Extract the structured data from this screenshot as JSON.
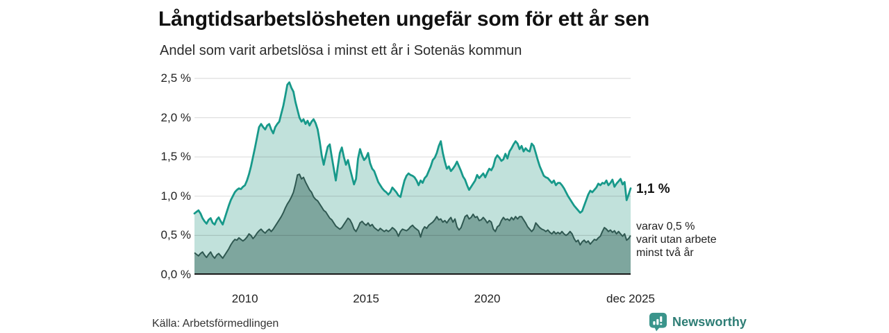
{
  "header": {
    "title": "Långtidsarbetslösheten ungefär som för ett år sen",
    "subtitle": "Andel som varit arbetslösa i minst ett år i Sotenäs kommun"
  },
  "axes": {
    "y_ticks": [
      {
        "label": "2,5 %",
        "value": 2.5
      },
      {
        "label": "2,0 %",
        "value": 2.0
      },
      {
        "label": "1,5 %",
        "value": 1.5
      },
      {
        "label": "1,0 %",
        "value": 1.0
      },
      {
        "label": "0,5 %",
        "value": 0.5
      },
      {
        "label": "0,0 %",
        "value": 0.0
      }
    ],
    "x_ticks": [
      {
        "label": "2010",
        "year": 2010.0
      },
      {
        "label": "2015",
        "year": 2015.0
      },
      {
        "label": "2020",
        "year": 2020.0
      },
      {
        "label": "dec 2025",
        "year": 2025.917
      }
    ]
  },
  "annotations": {
    "end_value": "1,1 %",
    "end_sub_lines": [
      "varav 0,5 %",
      "varit utan arbete",
      "minst två år"
    ]
  },
  "footer": {
    "source": "Källa: Arbetsförmedlingen",
    "brand": "Newsworthy"
  },
  "colors": {
    "line_primary": "#17998a",
    "fill_primary": "#c1e1db",
    "line_secondary": "#2f5851",
    "fill_secondary": "#7ea69e",
    "grid": "rgba(0,0,0,0.13)",
    "axis_baseline": "#1a1a1a",
    "brand": "#2e7d75",
    "brand_icon": "#3a948b"
  },
  "chart_data": {
    "type": "area",
    "title": "Långtidsarbetslösheten ungefär som för ett år sen",
    "subtitle": "Andel som varit arbetslösa i minst ett år i Sotenäs kommun",
    "unit": "%",
    "x_interval": "monthly",
    "x_start": "2007-12",
    "x_end": "2025-12",
    "x_domain": [
      2007.917,
      2025.917
    ],
    "ylim": [
      0,
      2.5
    ],
    "yticks": [
      0,
      0.5,
      1.0,
      1.5,
      2.0,
      2.5
    ],
    "xtick_labels": [
      "2010",
      "2015",
      "2020",
      "dec 2025"
    ],
    "grid": true,
    "legend": "end-of-line annotations",
    "series": [
      {
        "name": "Andel arbetslösa minst ett år",
        "end_label": "1,1 %",
        "end_value": 1.1,
        "values": [
          0.78,
          0.8,
          0.82,
          0.78,
          0.72,
          0.68,
          0.65,
          0.7,
          0.72,
          0.66,
          0.64,
          0.7,
          0.73,
          0.68,
          0.64,
          0.72,
          0.8,
          0.88,
          0.95,
          1.0,
          1.05,
          1.08,
          1.1,
          1.09,
          1.12,
          1.14,
          1.2,
          1.28,
          1.38,
          1.5,
          1.62,
          1.75,
          1.88,
          1.92,
          1.88,
          1.85,
          1.9,
          1.92,
          1.85,
          1.8,
          1.88,
          1.92,
          1.95,
          2.05,
          2.15,
          2.28,
          2.42,
          2.45,
          2.38,
          2.33,
          2.2,
          2.1,
          2.0,
          1.95,
          1.98,
          1.92,
          1.96,
          1.9,
          1.95,
          1.98,
          1.93,
          1.85,
          1.7,
          1.52,
          1.4,
          1.52,
          1.63,
          1.66,
          1.5,
          1.35,
          1.2,
          1.38,
          1.55,
          1.62,
          1.5,
          1.4,
          1.46,
          1.35,
          1.25,
          1.15,
          1.22,
          1.48,
          1.6,
          1.52,
          1.46,
          1.49,
          1.55,
          1.42,
          1.35,
          1.32,
          1.25,
          1.18,
          1.14,
          1.1,
          1.07,
          1.05,
          1.02,
          1.05,
          1.11,
          1.08,
          1.05,
          1.01,
          0.99,
          1.1,
          1.2,
          1.26,
          1.29,
          1.27,
          1.26,
          1.24,
          1.2,
          1.14,
          1.2,
          1.17,
          1.23,
          1.26,
          1.32,
          1.38,
          1.46,
          1.49,
          1.55,
          1.64,
          1.7,
          1.55,
          1.44,
          1.35,
          1.38,
          1.32,
          1.35,
          1.39,
          1.44,
          1.38,
          1.32,
          1.25,
          1.21,
          1.14,
          1.08,
          1.12,
          1.16,
          1.2,
          1.27,
          1.23,
          1.26,
          1.29,
          1.24,
          1.3,
          1.35,
          1.33,
          1.38,
          1.48,
          1.52,
          1.49,
          1.45,
          1.47,
          1.54,
          1.48,
          1.57,
          1.61,
          1.66,
          1.7,
          1.67,
          1.6,
          1.64,
          1.57,
          1.61,
          1.58,
          1.57,
          1.67,
          1.64,
          1.55,
          1.46,
          1.38,
          1.32,
          1.26,
          1.24,
          1.23,
          1.2,
          1.17,
          1.2,
          1.14,
          1.17,
          1.17,
          1.14,
          1.1,
          1.05,
          1.0,
          0.96,
          0.92,
          0.88,
          0.85,
          0.82,
          0.79,
          0.81,
          0.88,
          0.95,
          1.02,
          1.07,
          1.05,
          1.08,
          1.11,
          1.16,
          1.14,
          1.17,
          1.16,
          1.2,
          1.14,
          1.17,
          1.21,
          1.12,
          1.16,
          1.19,
          1.22,
          1.15,
          1.18,
          0.95,
          1.02,
          1.1
        ]
      },
      {
        "name": "varav utan arbete minst två år",
        "end_label": "varav 0,5 % varit utan arbete minst två år",
        "end_value": 0.5,
        "values": [
          0.28,
          0.26,
          0.24,
          0.27,
          0.29,
          0.25,
          0.22,
          0.26,
          0.29,
          0.24,
          0.21,
          0.25,
          0.27,
          0.24,
          0.21,
          0.25,
          0.29,
          0.33,
          0.38,
          0.42,
          0.45,
          0.44,
          0.47,
          0.45,
          0.43,
          0.45,
          0.48,
          0.52,
          0.5,
          0.46,
          0.49,
          0.53,
          0.56,
          0.58,
          0.55,
          0.53,
          0.56,
          0.58,
          0.55,
          0.58,
          0.62,
          0.66,
          0.7,
          0.74,
          0.79,
          0.85,
          0.9,
          0.94,
          0.99,
          1.05,
          1.15,
          1.27,
          1.28,
          1.22,
          1.24,
          1.18,
          1.13,
          1.08,
          1.05,
          0.99,
          0.96,
          0.94,
          0.9,
          0.86,
          0.82,
          0.8,
          0.76,
          0.72,
          0.7,
          0.66,
          0.62,
          0.6,
          0.58,
          0.6,
          0.64,
          0.68,
          0.72,
          0.7,
          0.65,
          0.58,
          0.55,
          0.6,
          0.66,
          0.68,
          0.65,
          0.63,
          0.66,
          0.62,
          0.64,
          0.6,
          0.58,
          0.56,
          0.59,
          0.57,
          0.55,
          0.57,
          0.55,
          0.57,
          0.6,
          0.58,
          0.55,
          0.49,
          0.55,
          0.58,
          0.57,
          0.56,
          0.58,
          0.61,
          0.63,
          0.6,
          0.58,
          0.56,
          0.48,
          0.57,
          0.61,
          0.59,
          0.63,
          0.65,
          0.67,
          0.7,
          0.74,
          0.7,
          0.71,
          0.67,
          0.69,
          0.66,
          0.7,
          0.73,
          0.67,
          0.71,
          0.61,
          0.57,
          0.6,
          0.67,
          0.74,
          0.76,
          0.71,
          0.73,
          0.77,
          0.73,
          0.74,
          0.69,
          0.7,
          0.73,
          0.7,
          0.66,
          0.69,
          0.67,
          0.58,
          0.55,
          0.61,
          0.63,
          0.69,
          0.73,
          0.7,
          0.71,
          0.69,
          0.73,
          0.7,
          0.74,
          0.71,
          0.74,
          0.74,
          0.7,
          0.66,
          0.61,
          0.58,
          0.55,
          0.58,
          0.66,
          0.63,
          0.6,
          0.58,
          0.57,
          0.55,
          0.57,
          0.54,
          0.52,
          0.55,
          0.52,
          0.54,
          0.52,
          0.55,
          0.52,
          0.5,
          0.52,
          0.55,
          0.52,
          0.46,
          0.42,
          0.44,
          0.38,
          0.42,
          0.44,
          0.41,
          0.43,
          0.39,
          0.42,
          0.45,
          0.44,
          0.47,
          0.49,
          0.55,
          0.6,
          0.58,
          0.55,
          0.57,
          0.54,
          0.56,
          0.52,
          0.55,
          0.52,
          0.49,
          0.52,
          0.44,
          0.46,
          0.5
        ]
      }
    ]
  }
}
